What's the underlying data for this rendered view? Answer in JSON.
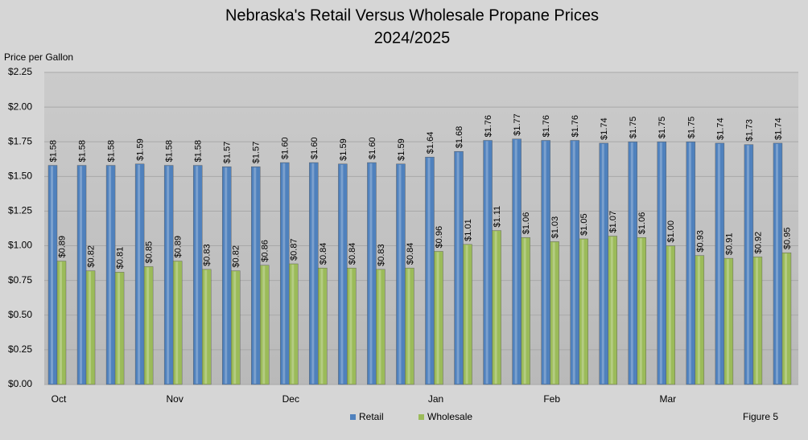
{
  "chart_data": {
    "type": "bar",
    "title": "Nebraska's Retail Versus Wholesale Propane Prices",
    "subtitle": "2024/2025",
    "y_axis_label": "Price per Gallon",
    "annotation": "Figure 5",
    "categories": [
      "Oct",
      null,
      null,
      null,
      "Nov",
      null,
      null,
      null,
      "Dec",
      null,
      null,
      null,
      null,
      "Jan",
      null,
      null,
      null,
      "Feb",
      null,
      null,
      null,
      "Mar",
      null,
      null,
      null,
      null
    ],
    "series": [
      {
        "name": "Retail",
        "color": "#4f81bd",
        "values": [
          1.58,
          1.58,
          1.58,
          1.59,
          1.58,
          1.58,
          1.57,
          1.57,
          1.6,
          1.6,
          1.59,
          1.6,
          1.59,
          1.64,
          1.68,
          1.76,
          1.77,
          1.76,
          1.76,
          1.74,
          1.75,
          1.75,
          1.75,
          1.74,
          1.73,
          1.74
        ],
        "value_labels": [
          "$1.58",
          "$1.58",
          "$1.58",
          "$1.59",
          "$1.58",
          "$1.58",
          "$1.57",
          "$1.57",
          "$1.60",
          "$1.60",
          "$1.59",
          "$1.60",
          "$1.59",
          "$1.64",
          "$1.68",
          "$1.76",
          "$1.77",
          "$1.76",
          "$1.76",
          "$1.74",
          "$1.75",
          "$1.75",
          "$1.75",
          "$1.74",
          "$1.73",
          "$1.74"
        ]
      },
      {
        "name": "Wholesale",
        "color": "#9bbb59",
        "values": [
          0.89,
          0.82,
          0.81,
          0.85,
          0.89,
          0.83,
          0.82,
          0.86,
          0.87,
          0.84,
          0.84,
          0.83,
          0.84,
          0.96,
          1.01,
          1.11,
          1.06,
          1.03,
          1.05,
          1.07,
          1.06,
          1.0,
          0.93,
          0.91,
          0.92,
          0.95
        ],
        "value_labels": [
          "$0.89",
          "$0.82",
          "$0.81",
          "$0.85",
          "$0.89",
          "$0.83",
          "$0.82",
          "$0.86",
          "$0.87",
          "$0.84",
          "$0.84",
          "$0.83",
          "$0.84",
          "$0.96",
          "$1.01",
          "$1.11",
          "$1.06",
          "$1.03",
          "$1.05",
          "$1.07",
          "$1.06",
          "$1.00",
          "$0.93",
          "$0.91",
          "$0.92",
          "$0.95"
        ]
      }
    ],
    "ylim": [
      0,
      2.25
    ],
    "yticks": [
      {
        "value": 0,
        "label": "$0.00"
      },
      {
        "value": 0.25,
        "label": "$0.25"
      },
      {
        "value": 0.5,
        "label": "$0.50"
      },
      {
        "value": 0.75,
        "label": "$0.75"
      },
      {
        "value": 1,
        "label": "$1.00"
      },
      {
        "value": 1.25,
        "label": "$1.25"
      },
      {
        "value": 1.5,
        "label": "$1.50"
      },
      {
        "value": 1.75,
        "label": "$1.75"
      },
      {
        "value": 2,
        "label": "$2.00"
      },
      {
        "value": 2.25,
        "label": "$2.25"
      }
    ],
    "grid": true,
    "legend": "bottom"
  }
}
